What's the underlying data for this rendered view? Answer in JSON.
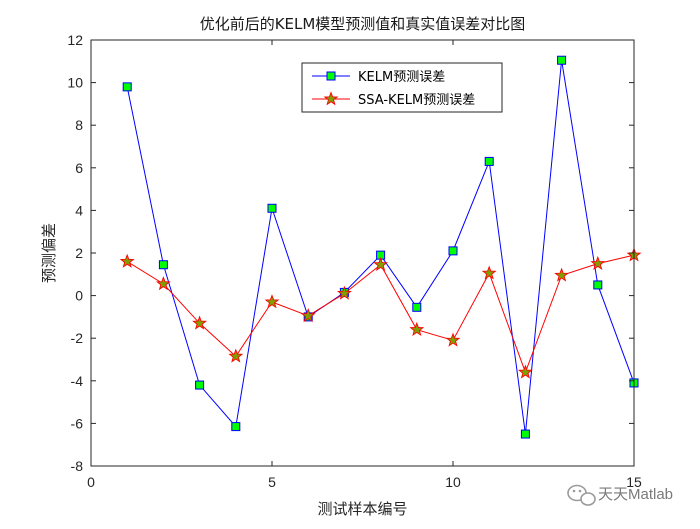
{
  "chart_data": {
    "type": "line",
    "title": "优化前后的KELM模型预测值和真实值误差对比图",
    "xlabel": "测试样本编号",
    "ylabel": "预测偏差",
    "xlim": [
      0,
      15
    ],
    "ylim": [
      -8,
      12
    ],
    "xticks": [
      0,
      5,
      10,
      15
    ],
    "yticks": [
      -8,
      -6,
      -4,
      -2,
      0,
      2,
      4,
      6,
      8,
      10,
      12
    ],
    "grid": false,
    "legend_position": "top-right",
    "x": [
      1,
      2,
      3,
      4,
      5,
      6,
      7,
      8,
      9,
      10,
      11,
      12,
      13,
      14,
      15
    ],
    "series": [
      {
        "name": "KELM预测误差",
        "values": [
          9.8,
          1.45,
          -4.2,
          -6.15,
          4.1,
          -1.0,
          0.15,
          1.9,
          -0.55,
          2.1,
          6.3,
          -6.5,
          11.05,
          0.5,
          -4.1
        ],
        "line_color": "#0000ff",
        "marker": "square",
        "marker_fill": "#00ff00"
      },
      {
        "name": "SSA-KELM预测误差",
        "values": [
          1.6,
          0.55,
          -1.3,
          -2.85,
          -0.3,
          -0.95,
          0.1,
          1.45,
          -1.6,
          -2.1,
          1.05,
          -3.6,
          0.95,
          1.5,
          1.9
        ],
        "line_color": "#ff0000",
        "marker": "star",
        "marker_fill": "#7f9f00"
      }
    ]
  },
  "watermark": {
    "text": "天天Matlab",
    "icon": "wechat-icon"
  }
}
